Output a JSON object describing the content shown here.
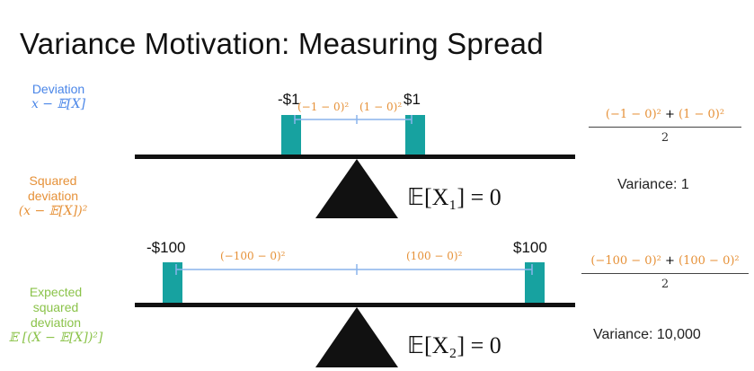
{
  "title": "Variance Motivation: Measuring Spread",
  "legend": {
    "deviation": {
      "label": "Deviation",
      "formula": "x − 𝔼[X]"
    },
    "squared": {
      "line1": "Squared",
      "line2": "deviation",
      "formula": "(x − 𝔼[X])²"
    },
    "expected": {
      "line1": "Expected",
      "line2": "squared",
      "line3": "deviation",
      "formula": "𝔼 [(X − 𝔼[X])²]"
    }
  },
  "seesaw1": {
    "left_label": "-$1",
    "right_label": "$1",
    "left_dev": "(−1 − 0)²",
    "right_dev": "(1 − 0)²",
    "expectation": "𝔼[X₁] = 0",
    "fraction": {
      "num_left": "(−1 − 0)²",
      "plus": " + ",
      "num_right": "(1 − 0)²",
      "den": "2"
    },
    "variance": "Variance: 1"
  },
  "seesaw2": {
    "left_label": "-$100",
    "right_label": "$100",
    "left_dev": "(−100 − 0)²",
    "right_dev": "(100 − 0)²",
    "expectation": "𝔼[X₂] = 0",
    "fraction": {
      "num_left": "(−100 − 0)²",
      "plus": " + ",
      "num_right": "(100 − 0)²",
      "den": "2"
    },
    "variance": "Variance: 10,000"
  },
  "colors": {
    "teal": "#17a2a0",
    "blue": "#4a86e8",
    "orange": "#e69138",
    "green": "#8bc34a",
    "black": "#111111"
  }
}
